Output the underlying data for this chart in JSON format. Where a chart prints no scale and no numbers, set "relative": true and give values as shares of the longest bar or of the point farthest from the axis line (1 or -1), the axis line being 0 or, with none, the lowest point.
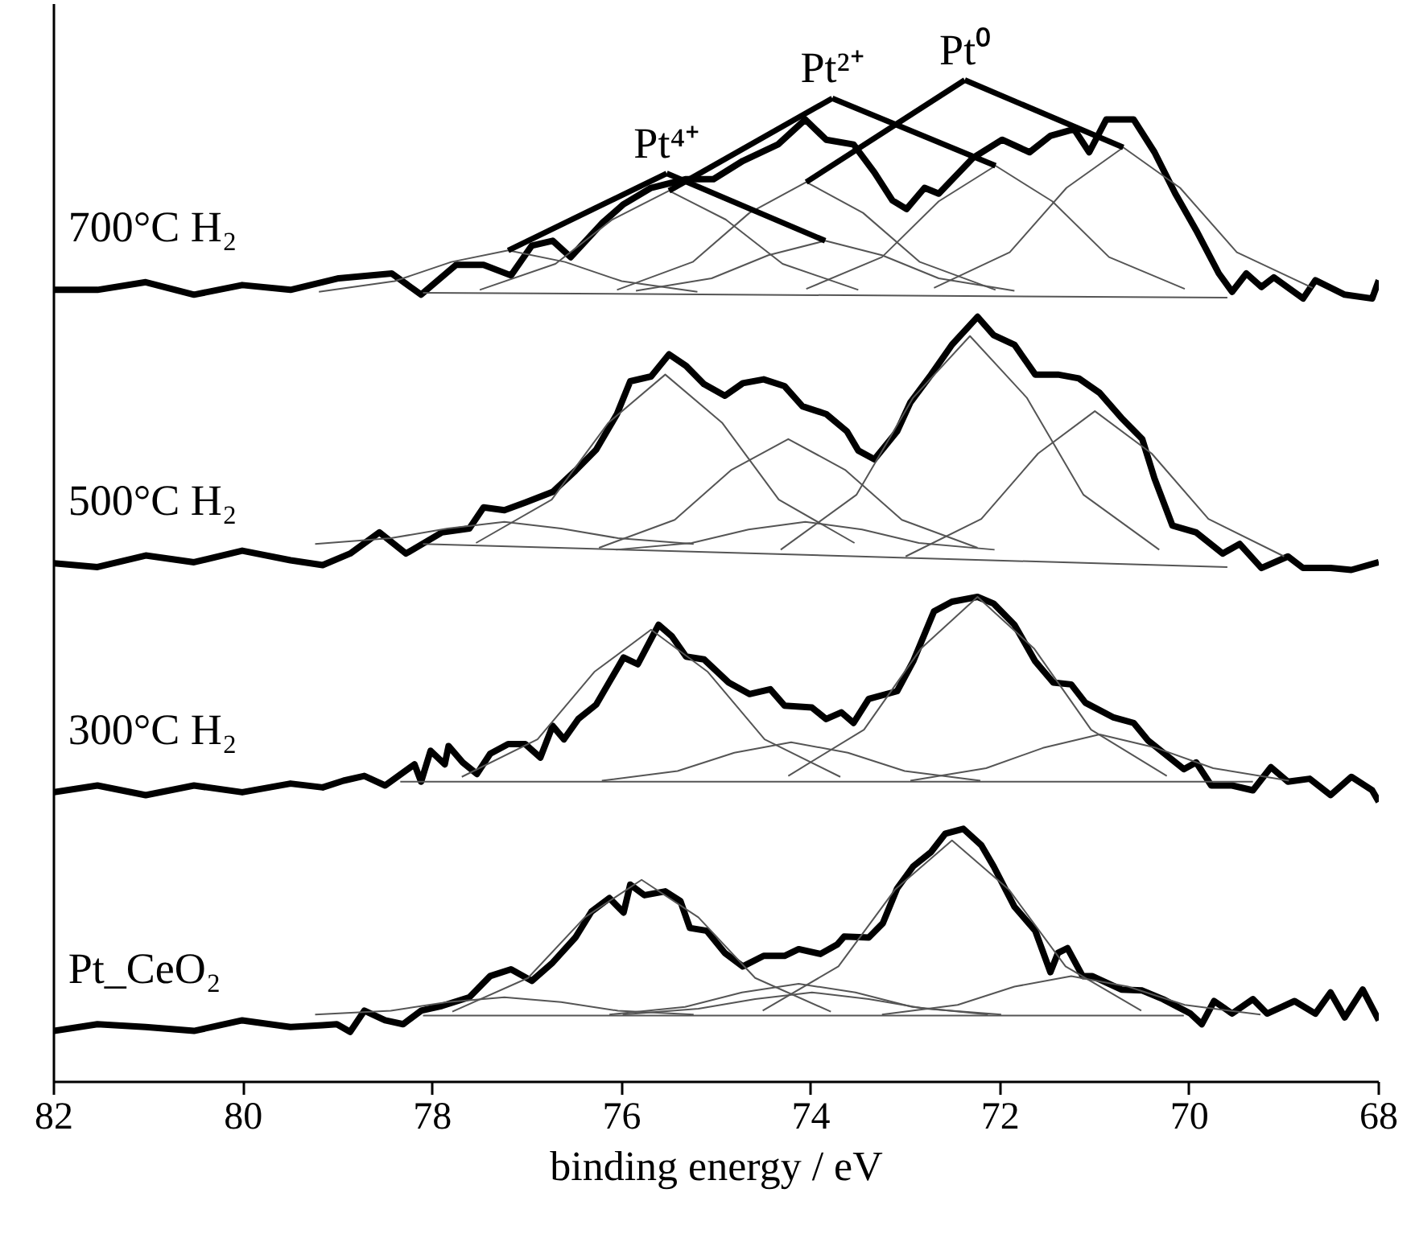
{
  "chart_data": {
    "type": "line",
    "relative": true,
    "xlabel": "binding energy / eV",
    "xlim": [
      82,
      68
    ],
    "xticks": [
      82,
      80,
      78,
      76,
      74,
      72,
      70,
      68
    ],
    "series": [
      {
        "name": "700°C H₂",
        "color": "#000000",
        "x": [
          82.0,
          81.54,
          81.03,
          80.52,
          80.01,
          79.5,
          78.99,
          78.43,
          78.12,
          77.75,
          77.46,
          77.17,
          76.95,
          76.73,
          76.54,
          76.2,
          75.98,
          75.69,
          75.32,
          75.03,
          74.72,
          74.35,
          74.06,
          73.84,
          73.55,
          73.33,
          73.14,
          72.99,
          72.8,
          72.65,
          72.29,
          71.98,
          71.69,
          71.47,
          71.22,
          71.06,
          70.88,
          70.59,
          70.37,
          70.15,
          69.93,
          69.69,
          69.55,
          69.4,
          69.24,
          69.11,
          68.8,
          68.67,
          68.36,
          68.07,
          68.0
        ],
        "values": [
          0.823,
          0.823,
          0.831,
          0.818,
          0.828,
          0.823,
          0.835,
          0.84,
          0.818,
          0.849,
          0.849,
          0.838,
          0.869,
          0.874,
          0.857,
          0.893,
          0.912,
          0.929,
          0.938,
          0.938,
          0.957,
          0.974,
          1.0,
          0.979,
          0.974,
          0.945,
          0.916,
          0.907,
          0.929,
          0.923,
          0.96,
          0.979,
          0.966,
          0.983,
          0.99,
          0.966,
          1.0,
          1.0,
          0.966,
          0.923,
          0.885,
          0.84,
          0.821,
          0.84,
          0.826,
          0.836,
          0.814,
          0.833,
          0.818,
          0.814,
          0.833
        ]
      },
      {
        "color": "#555555",
        "x": [
          78.1,
          69.6
        ],
        "values": [
          0.82,
          0.815
        ]
      },
      {
        "name": "Pt⁴⁺",
        "color": "#555555",
        "x": [
          79.2,
          78.4,
          77.8,
          77.2,
          76.6,
          76.0,
          75.2
        ],
        "values": [
          0.821,
          0.832,
          0.852,
          0.864,
          0.852,
          0.832,
          0.821
        ]
      },
      {
        "color": "#555555",
        "x": [
          75.85,
          75.05,
          74.45,
          73.85,
          73.25,
          72.65,
          71.85
        ],
        "values": [
          0.822,
          0.835,
          0.859,
          0.874,
          0.859,
          0.835,
          0.822
        ]
      },
      {
        "name": "Pt²⁺",
        "color": "#555555",
        "x": [
          77.5,
          76.7,
          76.1,
          75.5,
          74.9,
          74.3,
          73.5
        ],
        "values": [
          0.823,
          0.85,
          0.896,
          0.926,
          0.896,
          0.85,
          0.823
        ]
      },
      {
        "color": "#555555",
        "x": [
          74.05,
          73.25,
          72.65,
          72.05,
          71.45,
          70.85,
          70.05
        ],
        "values": [
          0.824,
          0.857,
          0.915,
          0.952,
          0.915,
          0.857,
          0.824
        ]
      },
      {
        "name": "Pt⁰",
        "color": "#555555",
        "x": [
          76.05,
          75.25,
          74.65,
          74.05,
          73.45,
          72.85,
          72.05
        ],
        "values": [
          0.823,
          0.852,
          0.903,
          0.935,
          0.903,
          0.852,
          0.823
        ]
      },
      {
        "color": "#555555",
        "x": [
          72.7,
          71.9,
          71.3,
          70.7,
          70.1,
          69.5,
          68.7
        ],
        "values": [
          0.825,
          0.862,
          0.929,
          0.971,
          0.929,
          0.862,
          0.825
        ]
      },
      {
        "name": "500°C H₂",
        "color": "#000000",
        "x": [
          82.0,
          81.54,
          81.03,
          80.52,
          80.01,
          79.5,
          79.16,
          78.87,
          78.56,
          78.28,
          77.9,
          77.61,
          77.46,
          77.24,
          77.02,
          76.73,
          76.49,
          76.27,
          76.05,
          75.91,
          75.69,
          75.5,
          75.32,
          75.13,
          74.91,
          74.72,
          74.5,
          74.28,
          74.09,
          73.84,
          73.62,
          73.5,
          73.33,
          73.09,
          72.95,
          72.73,
          72.51,
          72.24,
          72.07,
          71.85,
          71.63,
          71.39,
          71.17,
          70.95,
          70.72,
          70.5,
          70.37,
          70.18,
          69.93,
          69.65,
          69.47,
          69.24,
          68.96,
          68.8,
          68.51,
          68.29,
          68.0
        ],
        "values": [
          0.539,
          0.535,
          0.547,
          0.54,
          0.552,
          0.542,
          0.537,
          0.549,
          0.571,
          0.549,
          0.571,
          0.575,
          0.597,
          0.594,
          0.602,
          0.613,
          0.635,
          0.657,
          0.694,
          0.728,
          0.733,
          0.756,
          0.744,
          0.725,
          0.713,
          0.726,
          0.73,
          0.723,
          0.702,
          0.694,
          0.676,
          0.656,
          0.647,
          0.676,
          0.706,
          0.735,
          0.766,
          0.795,
          0.776,
          0.766,
          0.735,
          0.735,
          0.731,
          0.716,
          0.69,
          0.668,
          0.627,
          0.578,
          0.571,
          0.549,
          0.559,
          0.534,
          0.546,
          0.534,
          0.534,
          0.532,
          0.54
        ]
      },
      {
        "color": "#555555",
        "x": [
          78.1,
          69.6
        ],
        "values": [
          0.559,
          0.535
        ]
      },
      {
        "color": "#555555",
        "x": [
          79.24,
          78.44,
          77.84,
          77.24,
          76.64,
          76.04,
          75.24
        ],
        "values": [
          0.559,
          0.565,
          0.575,
          0.582,
          0.575,
          0.565,
          0.559
        ]
      },
      {
        "color": "#555555",
        "x": [
          77.54,
          76.74,
          76.14,
          75.54,
          74.94,
          74.34,
          73.54
        ],
        "values": [
          0.56,
          0.605,
          0.685,
          0.735,
          0.685,
          0.605,
          0.56
        ]
      },
      {
        "color": "#555555",
        "x": [
          76.24,
          75.44,
          74.84,
          74.24,
          73.64,
          73.04,
          72.24
        ],
        "values": [
          0.555,
          0.584,
          0.636,
          0.668,
          0.636,
          0.584,
          0.555
        ]
      },
      {
        "color": "#555555",
        "x": [
          76.06,
          75.26,
          74.66,
          74.06,
          73.46,
          72.86,
          72.06
        ],
        "values": [
          0.553,
          0.56,
          0.574,
          0.582,
          0.574,
          0.56,
          0.553
        ]
      },
      {
        "color": "#555555",
        "x": [
          74.32,
          73.52,
          72.92,
          72.32,
          71.72,
          71.12,
          70.32
        ],
        "values": [
          0.553,
          0.61,
          0.711,
          0.775,
          0.711,
          0.61,
          0.553
        ]
      },
      {
        "color": "#555555",
        "x": [
          73.0,
          72.2,
          71.6,
          71.0,
          70.4,
          69.8,
          69.0
        ],
        "values": [
          0.546,
          0.585,
          0.653,
          0.697,
          0.653,
          0.585,
          0.546
        ]
      },
      {
        "name": "300°C H₂",
        "color": "#000000",
        "x": [
          82.0,
          81.54,
          81.03,
          80.52,
          80.01,
          79.5,
          79.16,
          78.94,
          78.72,
          78.5,
          78.19,
          78.12,
          78.02,
          77.87,
          77.83,
          77.68,
          77.53,
          77.39,
          77.2,
          77.02,
          76.86,
          76.73,
          76.61,
          76.46,
          76.27,
          75.98,
          75.83,
          75.61,
          75.47,
          75.32,
          75.13,
          74.87,
          74.65,
          74.43,
          74.28,
          73.99,
          73.84,
          73.68,
          73.55,
          73.39,
          73.09,
          72.92,
          72.7,
          72.51,
          72.24,
          72.07,
          71.85,
          71.63,
          71.44,
          71.25,
          71.1,
          70.81,
          70.59,
          70.44,
          70.06,
          69.93,
          69.77,
          69.55,
          69.33,
          69.14,
          68.96,
          68.73,
          68.51,
          68.29,
          68.07,
          68.0
        ],
        "values": [
          0.301,
          0.308,
          0.298,
          0.308,
          0.301,
          0.31,
          0.306,
          0.313,
          0.318,
          0.308,
          0.33,
          0.312,
          0.344,
          0.33,
          0.349,
          0.332,
          0.32,
          0.341,
          0.351,
          0.351,
          0.337,
          0.37,
          0.356,
          0.377,
          0.392,
          0.441,
          0.434,
          0.475,
          0.463,
          0.442,
          0.439,
          0.415,
          0.403,
          0.408,
          0.391,
          0.389,
          0.377,
          0.384,
          0.373,
          0.398,
          0.406,
          0.437,
          0.489,
          0.499,
          0.504,
          0.497,
          0.475,
          0.437,
          0.415,
          0.413,
          0.394,
          0.379,
          0.373,
          0.355,
          0.325,
          0.332,
          0.308,
          0.308,
          0.303,
          0.327,
          0.312,
          0.315,
          0.298,
          0.317,
          0.303,
          0.291
        ]
      },
      {
        "color": "#555555",
        "x": [
          78.34,
          69.33
        ],
        "values": [
          0.312,
          0.312
        ]
      },
      {
        "color": "#555555",
        "x": [
          77.69,
          76.89,
          76.29,
          75.69,
          75.09,
          74.49,
          73.69
        ],
        "values": [
          0.317,
          0.356,
          0.426,
          0.47,
          0.426,
          0.356,
          0.317
        ]
      },
      {
        "color": "#555555",
        "x": [
          76.21,
          75.41,
          74.81,
          74.21,
          73.61,
          73.01,
          72.21
        ],
        "values": [
          0.313,
          0.323,
          0.342,
          0.353,
          0.342,
          0.323,
          0.313
        ]
      },
      {
        "color": "#555555",
        "x": [
          74.24,
          73.44,
          72.84,
          72.24,
          71.64,
          71.04,
          70.24
        ],
        "values": [
          0.318,
          0.366,
          0.45,
          0.504,
          0.45,
          0.366,
          0.318
        ]
      },
      {
        "color": "#555555",
        "x": [
          72.95,
          72.15,
          71.55,
          70.95,
          70.35,
          69.75,
          68.95
        ],
        "values": [
          0.313,
          0.326,
          0.347,
          0.361,
          0.347,
          0.326,
          0.313
        ]
      },
      {
        "name": "Pt_CeO₂",
        "color": "#000000",
        "x": [
          82.0,
          81.54,
          81.03,
          80.52,
          80.01,
          79.5,
          79.16,
          79.01,
          78.87,
          78.72,
          78.5,
          78.31,
          78.12,
          77.9,
          77.61,
          77.39,
          77.17,
          76.95,
          76.73,
          76.49,
          76.32,
          76.13,
          75.98,
          75.91,
          75.76,
          75.54,
          75.38,
          75.28,
          75.1,
          74.91,
          74.72,
          74.5,
          74.28,
          74.13,
          73.9,
          73.72,
          73.65,
          73.39,
          73.24,
          73.09,
          72.92,
          72.73,
          72.58,
          72.39,
          72.2,
          72.07,
          71.85,
          71.63,
          71.47,
          71.39,
          71.29,
          71.13,
          71.03,
          70.72,
          70.5,
          70.28,
          69.99,
          69.87,
          69.74,
          69.55,
          69.33,
          69.18,
          68.89,
          68.67,
          68.51,
          68.36,
          68.17,
          68.0
        ],
        "values": [
          0.053,
          0.06,
          0.057,
          0.053,
          0.064,
          0.057,
          0.059,
          0.06,
          0.052,
          0.074,
          0.064,
          0.06,
          0.074,
          0.079,
          0.088,
          0.11,
          0.117,
          0.105,
          0.124,
          0.15,
          0.177,
          0.191,
          0.176,
          0.205,
          0.194,
          0.198,
          0.188,
          0.16,
          0.157,
          0.134,
          0.12,
          0.131,
          0.131,
          0.138,
          0.133,
          0.143,
          0.151,
          0.15,
          0.165,
          0.201,
          0.224,
          0.239,
          0.258,
          0.263,
          0.246,
          0.224,
          0.182,
          0.157,
          0.114,
          0.134,
          0.139,
          0.11,
          0.11,
          0.096,
          0.095,
          0.086,
          0.071,
          0.06,
          0.084,
          0.071,
          0.086,
          0.071,
          0.084,
          0.071,
          0.093,
          0.067,
          0.096,
          0.064
        ]
      },
      {
        "color": "#555555",
        "x": [
          78.1,
          70.06
        ],
        "values": [
          0.069,
          0.069
        ]
      },
      {
        "color": "#555555",
        "x": [
          79.24,
          78.44,
          77.84,
          77.24,
          76.64,
          76.04,
          75.24
        ],
        "values": [
          0.07,
          0.074,
          0.083,
          0.088,
          0.083,
          0.074,
          0.07
        ]
      },
      {
        "color": "#555555",
        "x": [
          77.79,
          76.99,
          76.39,
          75.79,
          75.19,
          74.59,
          73.79
        ],
        "values": [
          0.073,
          0.108,
          0.171,
          0.21,
          0.171,
          0.108,
          0.073
        ]
      },
      {
        "color": "#555555",
        "x": [
          76.13,
          75.33,
          74.73,
          74.13,
          73.53,
          72.93,
          72.13
        ],
        "values": [
          0.07,
          0.078,
          0.093,
          0.102,
          0.093,
          0.078,
          0.07
        ]
      },
      {
        "color": "#555555",
        "x": [
          75.99,
          75.19,
          74.59,
          73.99,
          73.39,
          72.79,
          71.99
        ],
        "values": [
          0.07,
          0.076,
          0.086,
          0.093,
          0.086,
          0.076,
          0.07
        ]
      },
      {
        "color": "#555555",
        "x": [
          74.51,
          73.71,
          73.11,
          72.51,
          71.91,
          71.31,
          70.51
        ],
        "values": [
          0.074,
          0.12,
          0.2,
          0.251,
          0.2,
          0.12,
          0.074
        ]
      },
      {
        "color": "#555555",
        "x": [
          73.25,
          72.45,
          71.85,
          71.25,
          70.65,
          70.05,
          69.25
        ],
        "values": [
          0.07,
          0.08,
          0.099,
          0.11,
          0.099,
          0.08,
          0.07
        ]
      }
    ]
  }
}
